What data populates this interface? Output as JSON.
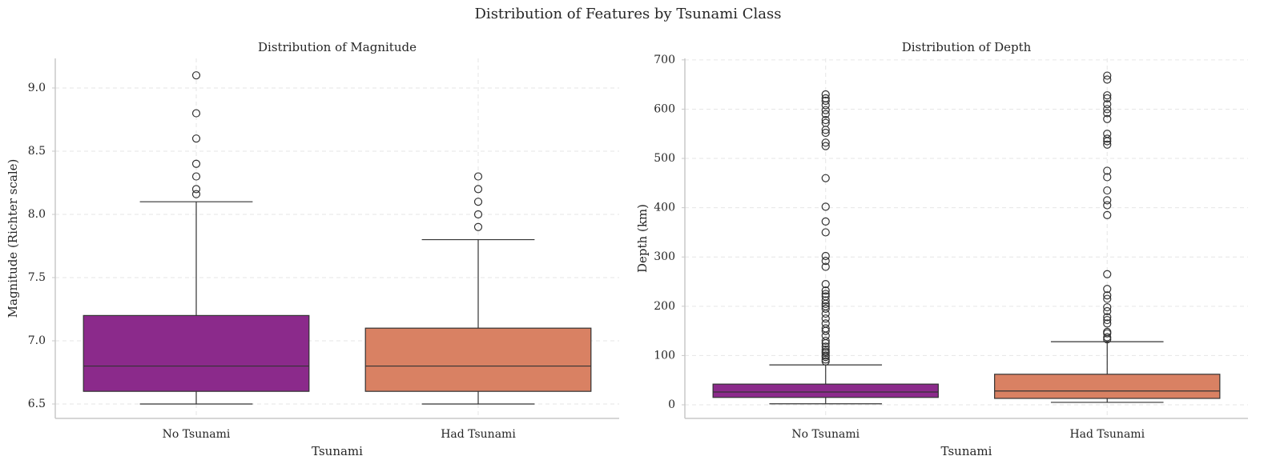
{
  "title": "Distribution of Features by Tsunami Class",
  "chart_data": [
    {
      "type": "box",
      "title": "Distribution of Magnitude",
      "xlabel": "Tsunami",
      "ylabel": "Magnitude (Richter scale)",
      "categories": [
        "No Tsunami",
        "Had Tsunami"
      ],
      "boxes": [
        {
          "color": "#8b2a8b",
          "whislo": 6.5,
          "q1": 6.6,
          "med": 6.8,
          "q3": 7.2,
          "whishi": 8.1,
          "fliers": [
            8.16,
            8.2,
            8.3,
            8.4,
            8.6,
            8.8,
            9.1
          ]
        },
        {
          "color": "#d98163",
          "whislo": 6.5,
          "q1": 6.6,
          "med": 6.8,
          "q3": 7.1,
          "whishi": 7.8,
          "fliers": [
            7.9,
            8.0,
            8.1,
            8.2,
            8.3
          ]
        }
      ],
      "ylim": [
        6.386,
        9.234
      ],
      "yticks": [
        6.5,
        {
          "value": 7,
          "label": "7.0"
        },
        7.5,
        {
          "value": 8,
          "label": "8.0"
        },
        8.5,
        {
          "value": 9,
          "label": "9.0"
        }
      ],
      "grid": true
    },
    {
      "type": "box",
      "title": "Distribution of Depth",
      "xlabel": "Tsunami",
      "ylabel": "Depth (km)",
      "categories": [
        "No Tsunami",
        "Had Tsunami"
      ],
      "boxes": [
        {
          "color": "#8b2a8b",
          "whislo": 2,
          "q1": 15,
          "med": 26,
          "q3": 42,
          "whishi": 81,
          "fliers": [
            88,
            92,
            97,
            100,
            105,
            108,
            112,
            118,
            125,
            130,
            140,
            150,
            155,
            165,
            175,
            185,
            195,
            200,
            205,
            212,
            220,
            225,
            232,
            245,
            280,
            292,
            302,
            350,
            372,
            402,
            460,
            525,
            532,
            552,
            558,
            572,
            578,
            590,
            598,
            608,
            617,
            622,
            630
          ]
        },
        {
          "color": "#d98163",
          "whislo": 5,
          "q1": 13,
          "med": 28,
          "q3": 62,
          "whishi": 128,
          "fliers": [
            133,
            137,
            145,
            148,
            165,
            172,
            178,
            190,
            198,
            215,
            222,
            235,
            265,
            385,
            405,
            415,
            435,
            462,
            475,
            528,
            535,
            540,
            550,
            580,
            592,
            600,
            610,
            622,
            628,
            660,
            668
          ]
        }
      ],
      "ylim": [
        -27.6,
        703
      ],
      "yticks": [
        0,
        100,
        200,
        300,
        400,
        500,
        600,
        700
      ],
      "grid": true
    }
  ]
}
